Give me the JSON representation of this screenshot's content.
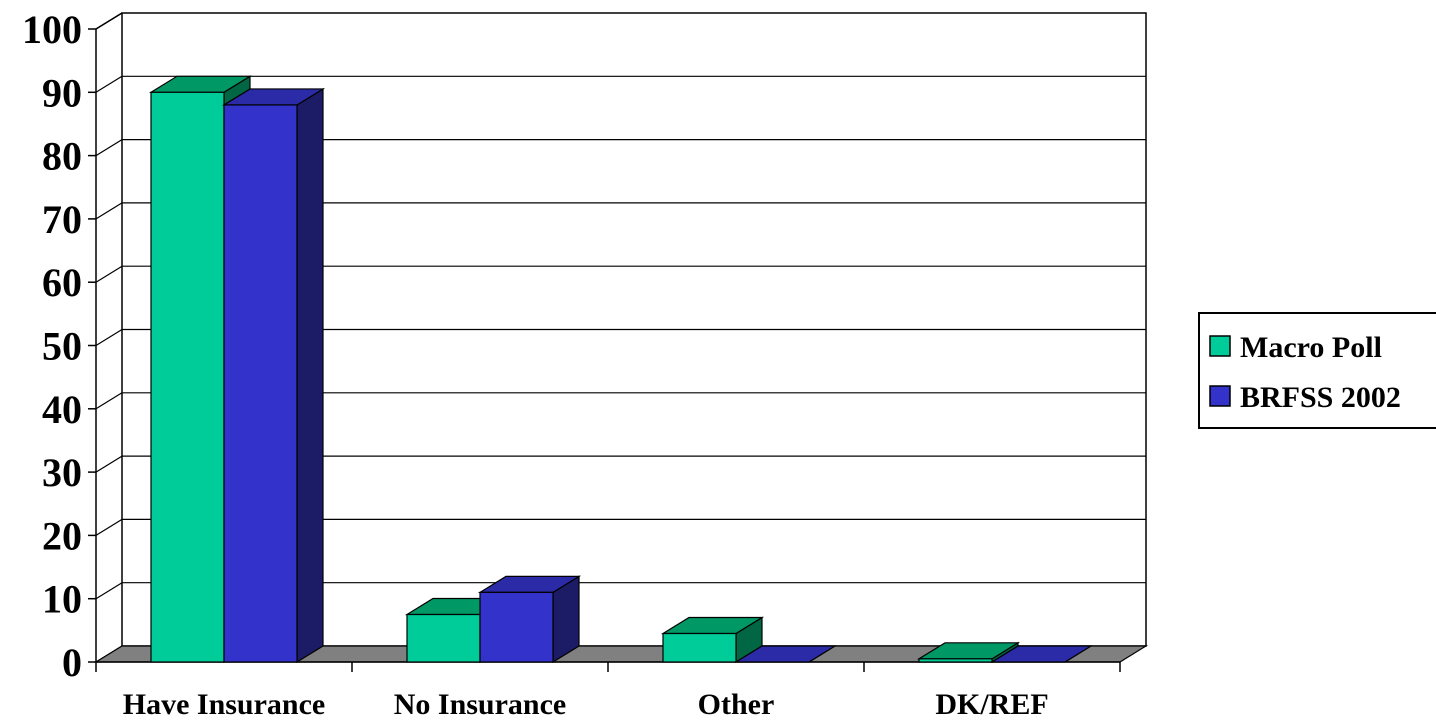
{
  "chart_data": {
    "type": "bar",
    "title": "",
    "xlabel": "",
    "ylabel": "",
    "categories": [
      "Have Insurance",
      "No Insurance",
      "Other",
      "DK/REF"
    ],
    "series": [
      {
        "name": "Macro Poll",
        "values": [
          90,
          7.5,
          4.5,
          0.5
        ],
        "colors": {
          "front": "#00CC99",
          "top": "#009966",
          "side": "#006644"
        }
      },
      {
        "name": "BRFSS 2002",
        "values": [
          88,
          11,
          0,
          0
        ],
        "colors": {
          "front": "#3333CC",
          "top": "#2B2BA8",
          "side": "#1C1C66"
        }
      }
    ],
    "ylim": [
      0,
      100
    ],
    "yticks": [
      "0",
      "10",
      "20",
      "30",
      "40",
      "50",
      "60",
      "70",
      "80",
      "90",
      "100"
    ],
    "grid": true,
    "three_d": true,
    "legend_position": "right",
    "floor_color": "#808080"
  }
}
